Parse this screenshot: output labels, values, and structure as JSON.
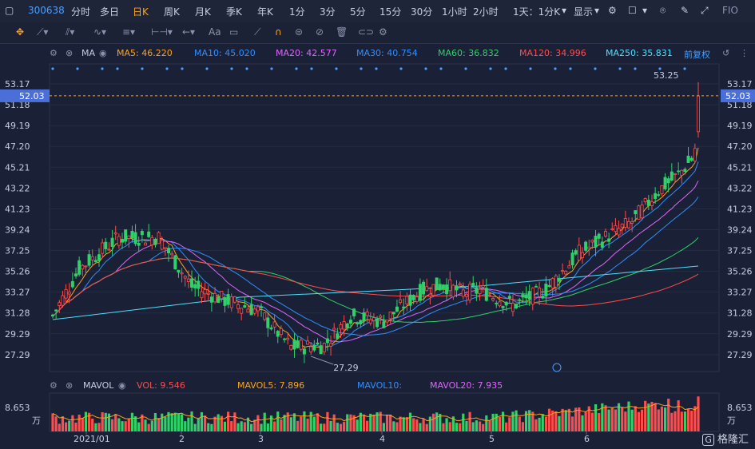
{
  "toolbar": {
    "symbol": "300638",
    "periods": [
      "分时",
      "多日",
      "日K",
      "周K",
      "月K",
      "季K",
      "年K",
      "1分",
      "3分",
      "5分",
      "15分",
      "30分",
      "1小时",
      "2小时"
    ],
    "active_period": "日K",
    "interval_select": "1天：1分K",
    "display_label": "显示",
    "fit_label": "FIO"
  },
  "drawtools": {
    "text_tool": "Aa"
  },
  "ma_legend": {
    "title": "MA",
    "items": [
      {
        "label": "MA5: 46.220",
        "color": "#ffa31a"
      },
      {
        "label": "MA10: 45.020",
        "color": "#2f8fff"
      },
      {
        "label": "MA20: 42.577",
        "color": "#e066ff"
      },
      {
        "label": "MA30: 40.754",
        "color": "#2f8fff"
      },
      {
        "label": "MA60: 36.832",
        "color": "#2fd168"
      },
      {
        "label": "MA120: 34.996",
        "color": "#ff4d4d"
      },
      {
        "label": "MA250: 35.831",
        "color": "#4ee0ff"
      }
    ],
    "adjust": "前复权"
  },
  "vol_legend": {
    "title": "MAVOL",
    "items": [
      {
        "label": "VOL: 9.546",
        "color": "#ff4d4d"
      },
      {
        "label": "MAVOL5: 7.896",
        "color": "#ffa31a"
      },
      {
        "label": "MAVOL10:",
        "color": "#2f8fff"
      },
      {
        "label": "MAVOL20: 7.935",
        "color": "#e066ff"
      }
    ]
  },
  "price_axis": [
    "53.17",
    "51.18",
    "49.19",
    "47.20",
    "45.21",
    "43.22",
    "41.23",
    "39.24",
    "37.25",
    "35.26",
    "33.27",
    "31.28",
    "29.29",
    "27.29"
  ],
  "volume_axis": {
    "value": "8.653",
    "unit": "万"
  },
  "current_price": "52.03",
  "annotations": {
    "high": "53.25",
    "low": "27.29"
  },
  "x_ticks": [
    "2021/01",
    "2",
    "3",
    "4",
    "5",
    "6"
  ],
  "watermark": "格隆汇",
  "chart_data": {
    "type": "candlestick",
    "symbol": "300638",
    "ylim": [
      27.29,
      53.17
    ],
    "last_price": 52.03,
    "period_high": 53.25,
    "period_low": 27.29,
    "x_labels": [
      "2021/01",
      "2",
      "3",
      "4",
      "5",
      "6"
    ],
    "ma": {
      "MA5": 46.22,
      "MA10": 45.02,
      "MA20": 42.577,
      "MA30": 40.754,
      "MA60": 36.832,
      "MA120": 34.996,
      "MA250": 35.831
    },
    "volume": {
      "VOL": 9.546,
      "MAVOL5": 7.896,
      "MAVOL20": 7.935,
      "max": 8.653,
      "unit": "万"
    }
  }
}
